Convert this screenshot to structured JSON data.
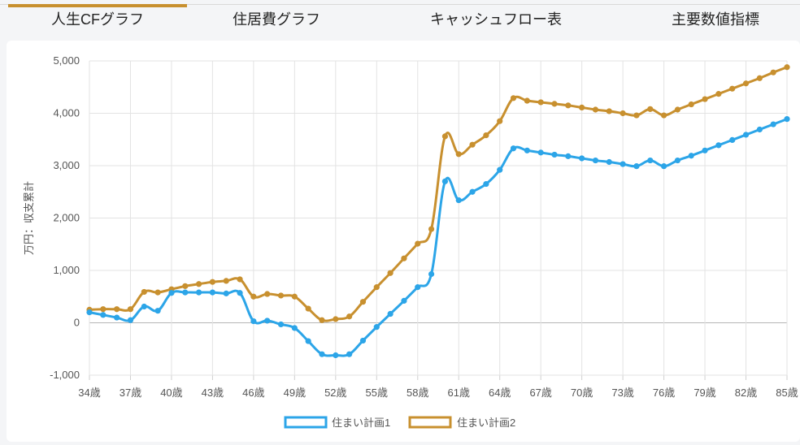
{
  "tabs": [
    {
      "label": "人生CFグラフ",
      "active": true
    },
    {
      "label": "住居費グラフ",
      "active": false
    },
    {
      "label": "キャッシュフロー表",
      "active": false
    },
    {
      "label": "主要数値指標",
      "active": false
    }
  ],
  "colors": {
    "accent": "#c8902f",
    "series1": "#2ca5e8",
    "series2": "#c8902f",
    "grid": "#e3e3e3"
  },
  "chart_data": {
    "type": "line",
    "ylabel": "万円：収支累計",
    "xlabel": "",
    "ylim": [
      -1000,
      5000
    ],
    "yticks": [
      -1000,
      0,
      1000,
      2000,
      3000,
      4000,
      5000
    ],
    "ytick_labels": [
      "-1,000",
      "0",
      "1,000",
      "2,000",
      "3,000",
      "4,000",
      "5,000"
    ],
    "x": [
      34,
      35,
      36,
      37,
      38,
      39,
      40,
      41,
      42,
      43,
      44,
      45,
      46,
      47,
      48,
      49,
      50,
      51,
      52,
      53,
      54,
      55,
      56,
      57,
      58,
      59,
      60,
      61,
      62,
      63,
      64,
      65,
      66,
      67,
      68,
      69,
      70,
      71,
      72,
      73,
      74,
      75,
      76,
      77,
      78,
      79,
      80,
      81,
      82,
      83,
      84,
      85
    ],
    "x_tick_values": [
      34,
      37,
      40,
      43,
      46,
      49,
      52,
      55,
      58,
      61,
      64,
      67,
      70,
      73,
      76,
      79,
      82,
      85
    ],
    "x_tick_labels": [
      "34歳",
      "37歳",
      "40歳",
      "43歳",
      "46歳",
      "49歳",
      "52歳",
      "55歳",
      "58歳",
      "61歳",
      "64歳",
      "67歳",
      "70歳",
      "73歳",
      "76歳",
      "79歳",
      "82歳",
      "85歳"
    ],
    "grid": true,
    "legend": "bottom",
    "series": [
      {
        "name": "住まい計画1",
        "values": [
          200,
          150,
          100,
          50,
          310,
          230,
          570,
          580,
          580,
          580,
          560,
          570,
          30,
          40,
          -30,
          -100,
          -350,
          -600,
          -620,
          -600,
          -340,
          -80,
          170,
          420,
          680,
          930,
          2700,
          2340,
          2500,
          2650,
          2920,
          3330,
          3290,
          3250,
          3210,
          3180,
          3140,
          3100,
          3070,
          3030,
          2990,
          3100,
          2990,
          3100,
          3190,
          3290,
          3390,
          3490,
          3590,
          3690,
          3790,
          3890
        ]
      },
      {
        "name": "住まい計画2",
        "values": [
          250,
          260,
          260,
          260,
          590,
          580,
          640,
          700,
          740,
          780,
          800,
          830,
          500,
          550,
          520,
          500,
          270,
          50,
          70,
          120,
          400,
          680,
          950,
          1230,
          1510,
          1790,
          3560,
          3220,
          3400,
          3580,
          3850,
          4290,
          4240,
          4210,
          4180,
          4150,
          4110,
          4070,
          4040,
          4000,
          3960,
          4080,
          3960,
          4070,
          4170,
          4270,
          4370,
          4470,
          4570,
          4670,
          4780,
          4880
        ]
      }
    ]
  }
}
